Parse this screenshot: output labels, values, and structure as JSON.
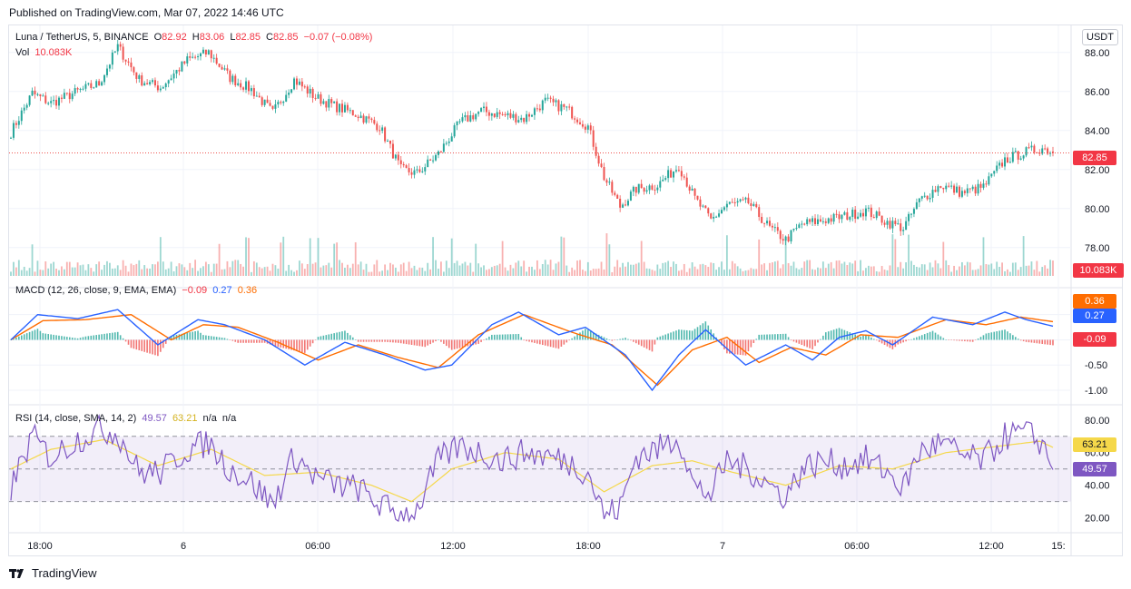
{
  "header": {
    "published": "Published on TradingView.com, Mar 07, 2022 14:46 UTC"
  },
  "legend": {
    "symbol": "Luna / TetherUS, 5, BINANCE",
    "o_label": "O",
    "o": "82.92",
    "h_label": "H",
    "h": "83.06",
    "l_label": "L",
    "l": "82.85",
    "c_label": "C",
    "c": "82.85",
    "change": "−0.07 (−0.08%)",
    "vol_label": "Vol",
    "vol": "10.083K"
  },
  "macd_legend": {
    "label": "MACD (12, 26, close, 9, EMA, EMA)",
    "hist": "−0.09",
    "macd": "0.27",
    "signal": "0.36"
  },
  "rsi_legend": {
    "label": "RSI (14, close, SMA, 14, 2)",
    "rsi": "49.57",
    "ma": "63.21",
    "na1": "n/a",
    "na2": "n/a"
  },
  "currency": "USDT",
  "badges": {
    "price": "82.85",
    "volume": "10.083K",
    "signal": "0.36",
    "macd": "0.27",
    "hist": "-0.09",
    "rsi_ma": "63.21",
    "rsi": "49.57"
  },
  "footer": {
    "brand": "TradingView"
  },
  "colors": {
    "up": "#26a69a",
    "down": "#ef5350",
    "macd": "#2962ff",
    "signal": "#ff6d00",
    "rsi": "#7e57c2",
    "rsi_ma": "#f5d84a"
  },
  "chart_data": [
    {
      "type": "candlestick",
      "title": "Luna / TetherUS, 5, BINANCE",
      "y_axis": {
        "ticks": [
          "78.00",
          "80.00",
          "82.00",
          "84.00",
          "86.00",
          "88.00"
        ],
        "range": [
          76.5,
          89.2
        ]
      },
      "x_axis": {
        "ticks": [
          "18:00",
          "6",
          "06:00",
          "12:00",
          "18:00",
          "7",
          "06:00",
          "12:00",
          "15:"
        ]
      },
      "price_anchors": [
        [
          0,
          83.9
        ],
        [
          8,
          85.9
        ],
        [
          15,
          85.4
        ],
        [
          25,
          86.0
        ],
        [
          33,
          86.4
        ],
        [
          40,
          88.3
        ],
        [
          48,
          86.6
        ],
        [
          56,
          86.2
        ],
        [
          66,
          87.6
        ],
        [
          74,
          88.0
        ],
        [
          82,
          86.7
        ],
        [
          90,
          86.1
        ],
        [
          98,
          84.9
        ],
        [
          106,
          86.6
        ],
        [
          114,
          85.7
        ],
        [
          122,
          85.2
        ],
        [
          130,
          84.8
        ],
        [
          138,
          84.2
        ],
        [
          146,
          82.0
        ],
        [
          152,
          81.8
        ],
        [
          160,
          82.8
        ],
        [
          168,
          84.4
        ],
        [
          176,
          85.0
        ],
        [
          184,
          84.8
        ],
        [
          192,
          84.6
        ],
        [
          200,
          85.5
        ],
        [
          208,
          85.1
        ],
        [
          216,
          84.2
        ],
        [
          222,
          81.6
        ],
        [
          228,
          80.1
        ],
        [
          234,
          81.0
        ],
        [
          242,
          81.2
        ],
        [
          250,
          82.2
        ],
        [
          256,
          80.5
        ],
        [
          262,
          79.4
        ],
        [
          268,
          80.2
        ],
        [
          276,
          80.3
        ],
        [
          284,
          79.0
        ],
        [
          290,
          78.4
        ],
        [
          296,
          79.2
        ],
        [
          304,
          79.4
        ],
        [
          312,
          79.6
        ],
        [
          320,
          79.9
        ],
        [
          328,
          79.3
        ],
        [
          334,
          79.0
        ],
        [
          340,
          80.4
        ],
        [
          348,
          81.2
        ],
        [
          356,
          80.8
        ],
        [
          364,
          81.1
        ],
        [
          372,
          82.5
        ],
        [
          380,
          82.9
        ],
        [
          386,
          83.1
        ],
        [
          390,
          82.9
        ]
      ],
      "volume_last": "10.083K"
    },
    {
      "type": "line",
      "title": "MACD (12, 26, close, 9, EMA, EMA)",
      "y_axis": {
        "ticks": [
          "0.50",
          "0.00",
          "-0.50",
          "-1.00"
        ],
        "range": [
          -1.18,
          0.8
        ]
      },
      "series": [
        {
          "name": "MACD",
          "anchors": [
            [
              0,
              0.0
            ],
            [
              10,
              0.5
            ],
            [
              25,
              0.42
            ],
            [
              40,
              0.6
            ],
            [
              55,
              -0.1
            ],
            [
              70,
              0.4
            ],
            [
              80,
              0.3
            ],
            [
              95,
              0.0
            ],
            [
              110,
              -0.5
            ],
            [
              125,
              -0.05
            ],
            [
              140,
              -0.3
            ],
            [
              155,
              -0.6
            ],
            [
              165,
              -0.5
            ],
            [
              180,
              0.3
            ],
            [
              190,
              0.55
            ],
            [
              205,
              0.1
            ],
            [
              215,
              0.25
            ],
            [
              230,
              -0.3
            ],
            [
              240,
              -1.0
            ],
            [
              250,
              -0.3
            ],
            [
              260,
              0.2
            ],
            [
              275,
              -0.5
            ],
            [
              290,
              -0.1
            ],
            [
              300,
              -0.4
            ],
            [
              310,
              0.05
            ],
            [
              320,
              0.18
            ],
            [
              330,
              -0.1
            ],
            [
              345,
              0.45
            ],
            [
              360,
              0.3
            ],
            [
              372,
              0.55
            ],
            [
              380,
              0.4
            ],
            [
              390,
              0.27
            ]
          ]
        },
        {
          "name": "Signal",
          "anchors": [
            [
              0,
              0.0
            ],
            [
              12,
              0.38
            ],
            [
              28,
              0.4
            ],
            [
              45,
              0.5
            ],
            [
              60,
              0.0
            ],
            [
              72,
              0.3
            ],
            [
              85,
              0.25
            ],
            [
              100,
              -0.05
            ],
            [
              115,
              -0.4
            ],
            [
              130,
              -0.1
            ],
            [
              145,
              -0.35
            ],
            [
              160,
              -0.55
            ],
            [
              175,
              0.1
            ],
            [
              192,
              0.5
            ],
            [
              210,
              0.15
            ],
            [
              225,
              -0.1
            ],
            [
              242,
              -0.9
            ],
            [
              255,
              -0.2
            ],
            [
              268,
              0.05
            ],
            [
              280,
              -0.45
            ],
            [
              292,
              -0.15
            ],
            [
              305,
              -0.3
            ],
            [
              318,
              0.1
            ],
            [
              332,
              0.05
            ],
            [
              350,
              0.4
            ],
            [
              365,
              0.3
            ],
            [
              378,
              0.45
            ],
            [
              390,
              0.36
            ]
          ]
        }
      ]
    },
    {
      "type": "line",
      "title": "RSI (14, close, SMA, 14, 2)",
      "y_axis": {
        "ticks": [
          "20.00",
          "40.00",
          "60.00",
          "80.00"
        ],
        "range": [
          12,
          86
        ],
        "bands": [
          70,
          50,
          30
        ]
      },
      "series": [
        {
          "name": "RSI",
          "anchors": [
            [
              0,
              38
            ],
            [
              8,
              70
            ],
            [
              15,
              57
            ],
            [
              25,
              68
            ],
            [
              33,
              74
            ],
            [
              40,
              72
            ],
            [
              48,
              48
            ],
            [
              56,
              48
            ],
            [
              66,
              62
            ],
            [
              74,
              66
            ],
            [
              82,
              50
            ],
            [
              90,
              42
            ],
            [
              98,
              28
            ],
            [
              106,
              58
            ],
            [
              114,
              45
            ],
            [
              122,
              40
            ],
            [
              130,
              38
            ],
            [
              138,
              28
            ],
            [
              146,
              22
            ],
            [
              152,
              25
            ],
            [
              160,
              55
            ],
            [
              168,
              64
            ],
            [
              176,
              60
            ],
            [
              184,
              55
            ],
            [
              192,
              60
            ],
            [
              200,
              58
            ],
            [
              208,
              55
            ],
            [
              216,
              48
            ],
            [
              222,
              22
            ],
            [
              228,
              26
            ],
            [
              234,
              58
            ],
            [
              242,
              62
            ],
            [
              250,
              70
            ],
            [
              256,
              38
            ],
            [
              262,
              35
            ],
            [
              268,
              55
            ],
            [
              276,
              50
            ],
            [
              284,
              40
            ],
            [
              290,
              33
            ],
            [
              296,
              50
            ],
            [
              304,
              55
            ],
            [
              312,
              52
            ],
            [
              320,
              56
            ],
            [
              328,
              48
            ],
            [
              334,
              38
            ],
            [
              340,
              60
            ],
            [
              348,
              66
            ],
            [
              356,
              58
            ],
            [
              364,
              55
            ],
            [
              372,
              70
            ],
            [
              380,
              72
            ],
            [
              386,
              66
            ],
            [
              390,
              49.57
            ]
          ]
        },
        {
          "name": "RSI-based MA",
          "anchors": [
            [
              0,
              50
            ],
            [
              15,
              62
            ],
            [
              35,
              68
            ],
            [
              55,
              52
            ],
            [
              75,
              62
            ],
            [
              95,
              46
            ],
            [
              115,
              48
            ],
            [
              135,
              40
            ],
            [
              150,
              30
            ],
            [
              165,
              50
            ],
            [
              185,
              60
            ],
            [
              205,
              56
            ],
            [
              222,
              36
            ],
            [
              240,
              52
            ],
            [
              255,
              55
            ],
            [
              270,
              48
            ],
            [
              290,
              40
            ],
            [
              310,
              52
            ],
            [
              330,
              50
            ],
            [
              350,
              60
            ],
            [
              370,
              64
            ],
            [
              385,
              67
            ],
            [
              390,
              63.21
            ]
          ]
        }
      ]
    }
  ]
}
